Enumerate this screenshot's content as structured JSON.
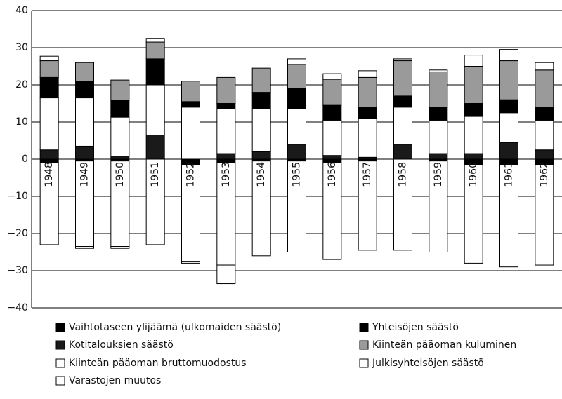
{
  "chart_data": {
    "type": "bar",
    "categories": [
      "1948",
      "1949",
      "1950",
      "1951",
      "1952",
      "1953",
      "1954",
      "1955",
      "1956",
      "1957",
      "1958",
      "1959",
      "1960",
      "1961",
      "1962"
    ],
    "series": [
      {
        "name": "Kotitalouksien säästö",
        "color": "#1a1a1a",
        "values": [
          2.5,
          3.5,
          0.8,
          6.5,
          0,
          1.5,
          2,
          4,
          1,
          0.5,
          4,
          1.5,
          1.5,
          4.5,
          2.5
        ]
      },
      {
        "name": "Julkisyhteisöjen säästö",
        "color": "#ffffff",
        "values": [
          14,
          13,
          10.5,
          13.5,
          14,
          12,
          11.5,
          9.5,
          9.5,
          10.5,
          10,
          9,
          10,
          8,
          8
        ]
      },
      {
        "name": "Yhteisöjen säästö",
        "color": "#000000",
        "values": [
          5.5,
          4.5,
          4.5,
          7,
          1.5,
          1.5,
          4.5,
          5.5,
          4,
          3,
          3,
          3.5,
          3.5,
          3.5,
          3.5
        ]
      },
      {
        "name": "Kiinteän pääoman kuluminen",
        "color": "#9a9a9a",
        "values": [
          4.5,
          5,
          5.5,
          4.5,
          5.5,
          7,
          6.5,
          6.5,
          7,
          8,
          9.5,
          9.5,
          10,
          10.5,
          10
        ]
      },
      {
        "name": "Vaihtotaseen ylijäämä (ulkomaiden säästö)",
        "color": "#000000",
        "values": [
          -1,
          -0.5,
          -0.5,
          0,
          -1.5,
          -1,
          -0.5,
          -0.5,
          -1,
          -0.5,
          0,
          -0.5,
          -1.5,
          -1.5,
          -1.5
        ]
      },
      {
        "name": "Kiinteän pääoman bruttomuodostus",
        "color": "#ffffff",
        "values": [
          -22,
          -23,
          -23,
          -23,
          -26,
          -27.5,
          -25.5,
          -24.5,
          -26,
          -24,
          -24.5,
          -24.5,
          -26.5,
          -27.5,
          -27
        ]
      },
      {
        "name": "Varastojen muutos",
        "color": "#ffffff",
        "values": [
          1.2,
          -0.5,
          -0.5,
          1,
          -0.5,
          -5,
          0,
          1.5,
          1.5,
          1.8,
          0.5,
          0.5,
          3,
          3,
          2
        ]
      }
    ],
    "ylim": [
      -40,
      40
    ],
    "yticks": [
      40,
      30,
      20,
      10,
      0,
      {
        "value": -10,
        "label": "−10"
      },
      {
        "value": -20,
        "label": "−20"
      },
      {
        "value": -30,
        "label": "−30"
      },
      {
        "value": -40,
        "label": "−40"
      }
    ],
    "grid": true
  }
}
